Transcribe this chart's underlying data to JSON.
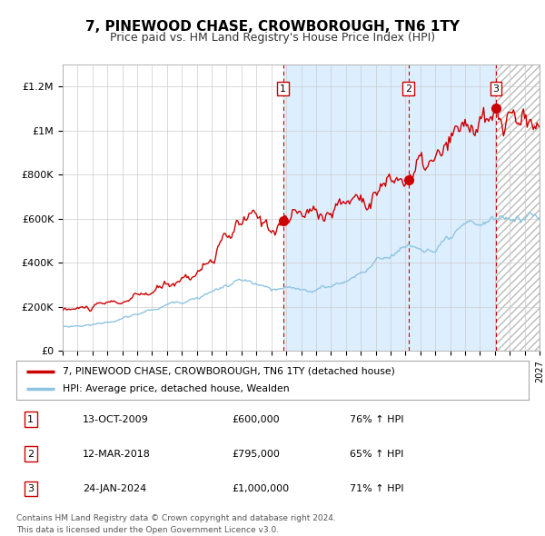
{
  "title": "7, PINEWOOD CHASE, CROWBOROUGH, TN6 1TY",
  "subtitle": "Price paid vs. HM Land Registry's House Price Index (HPI)",
  "red_label": "7, PINEWOOD CHASE, CROWBOROUGH, TN6 1TY (detached house)",
  "blue_label": "HPI: Average price, detached house, Wealden",
  "transactions": [
    {
      "num": 1,
      "date": "13-OCT-2009",
      "price": "£600,000",
      "hpi_pct": "76% ↑ HPI",
      "year": 2009.79,
      "value": 600000
    },
    {
      "num": 2,
      "date": "12-MAR-2018",
      "price": "£795,000",
      "hpi_pct": "65% ↑ HPI",
      "year": 2018.2,
      "value": 795000
    },
    {
      "num": 3,
      "date": "24-JAN-2024",
      "price": "£1,000,000",
      "hpi_pct": "71% ↑ HPI",
      "year": 2024.07,
      "value": 1000000
    }
  ],
  "footer_line1": "Contains HM Land Registry data © Crown copyright and database right 2024.",
  "footer_line2": "This data is licensed under the Open Government Licence v3.0.",
  "xmin": 1995,
  "xmax": 2027,
  "ymin": 0,
  "ymax": 1300000,
  "yticks": [
    0,
    200000,
    400000,
    600000,
    800000,
    1000000,
    1200000
  ],
  "ytick_labels": [
    "£0",
    "£200K",
    "£400K",
    "£600K",
    "£800K",
    "£1M",
    "£1.2M"
  ],
  "red_color": "#cc0000",
  "blue_color": "#8ec4e0",
  "shade_color": "#ddeeff",
  "vline_color": "#cc0000",
  "grid_color": "#cccccc",
  "bg_color": "#ffffff"
}
